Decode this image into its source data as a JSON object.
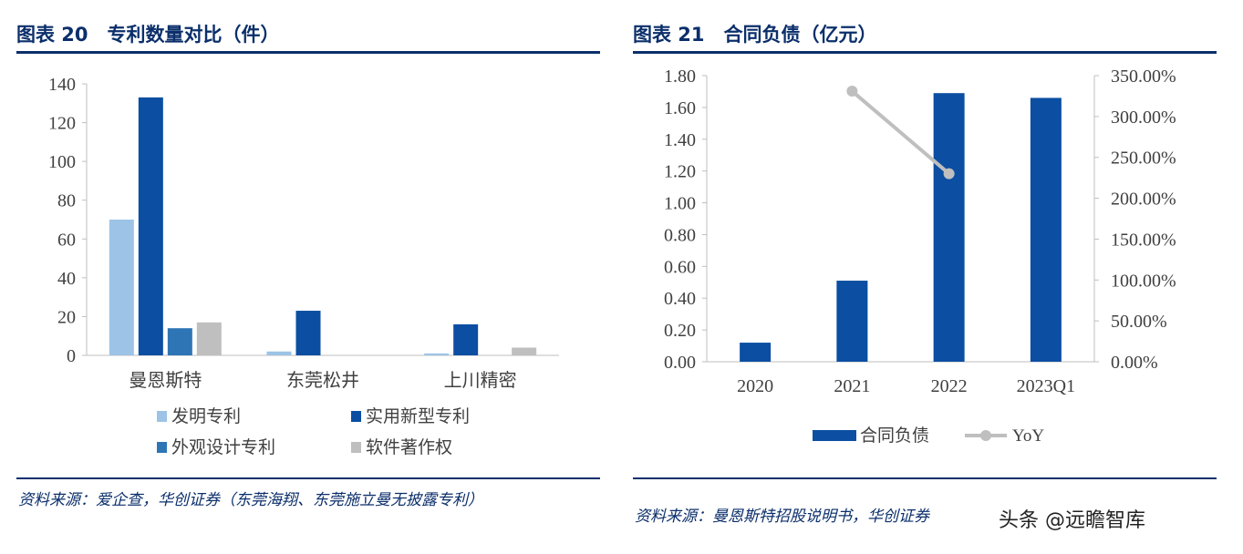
{
  "left": {
    "title": "图表 20　专利数量对比（件）",
    "source": "资料来源：爱企查，华创证券（东莞海翔、东莞施立曼无披露专利）"
  },
  "right": {
    "title": "图表 21　合同负债（亿元）",
    "source": "资料来源：曼恩斯特招股说明书，华创证券"
  },
  "watermark": "头条 @远瞻智库",
  "chart_data": [
    {
      "type": "bar",
      "categories": [
        "曼恩斯特",
        "东莞松井",
        "上川精密"
      ],
      "series": [
        {
          "name": "发明专利",
          "values": [
            70,
            2,
            1
          ],
          "color": "#9dc3e6"
        },
        {
          "name": "实用新型专利",
          "values": [
            133,
            23,
            16
          ],
          "color": "#0b4ea2"
        },
        {
          "name": "外观设计专利",
          "values": [
            14,
            0,
            0
          ],
          "color": "#2e75b6"
        },
        {
          "name": "软件著作权",
          "values": [
            17,
            0,
            4
          ],
          "color": "#bfbfbf"
        }
      ],
      "ylim": [
        0,
        140
      ],
      "yticks": [
        "0",
        "20",
        "40",
        "60",
        "80",
        "100",
        "120",
        "140"
      ],
      "legend": "bottom",
      "grid": false
    },
    {
      "type": "bar+line",
      "categories": [
        "2020",
        "2021",
        "2022",
        "2023Q1"
      ],
      "series": [
        {
          "name": "合同负债",
          "type": "bar",
          "axis": "left",
          "values": [
            0.12,
            0.51,
            1.69,
            1.66
          ],
          "color": "#0b4ea2"
        },
        {
          "name": "YoY",
          "type": "line",
          "axis": "right",
          "values": [
            null,
            331,
            230,
            null
          ],
          "color": "#bfbfbf"
        }
      ],
      "ylim": [
        0,
        1.8
      ],
      "yticks": [
        "0.00",
        "0.20",
        "0.40",
        "0.60",
        "0.80",
        "1.00",
        "1.20",
        "1.40",
        "1.60",
        "1.80"
      ],
      "y2lim": [
        0,
        350
      ],
      "y2ticks": [
        "0.00%",
        "50.00%",
        "100.00%",
        "150.00%",
        "200.00%",
        "250.00%",
        "300.00%",
        "350.00%"
      ],
      "legend": "bottom",
      "grid": false
    }
  ]
}
